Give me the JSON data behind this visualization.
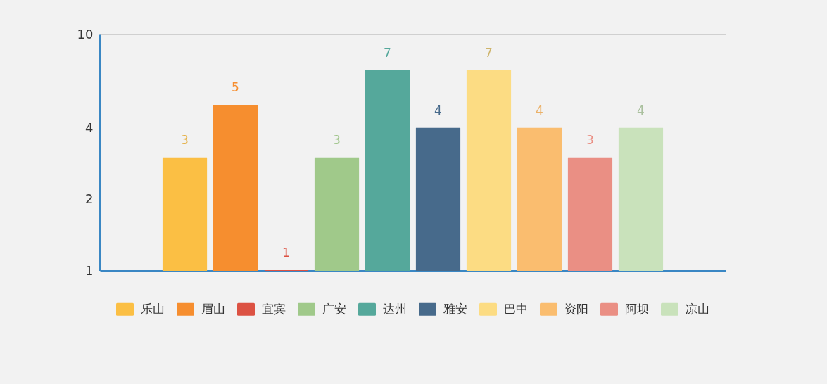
{
  "chart_data": {
    "type": "bar",
    "categories": [
      null
    ],
    "series": [
      {
        "name": "乐山",
        "color": "#fbbf44",
        "values": [
          3
        ]
      },
      {
        "name": "眉山",
        "color": "#f68e2f",
        "values": [
          5
        ]
      },
      {
        "name": "宜宾",
        "color": "#dc5243",
        "values": [
          1
        ]
      },
      {
        "name": "广安",
        "color": "#a0c98a",
        "values": [
          3
        ]
      },
      {
        "name": "达州",
        "color": "#55a89b",
        "values": [
          7
        ]
      },
      {
        "name": "雅安",
        "color": "#476a8b",
        "values": [
          4
        ]
      },
      {
        "name": "巴中",
        "color": "#fcdc83",
        "values": [
          7
        ]
      },
      {
        "name": "资阳",
        "color": "#fabd6f",
        "values": [
          4
        ]
      },
      {
        "name": "阿坝",
        "color": "#ea8f84",
        "values": [
          3
        ]
      },
      {
        "name": "凉山",
        "color": "#c9e2bb",
        "values": [
          4
        ]
      }
    ],
    "log": true,
    "ylim": [
      1,
      10
    ],
    "yticks": [
      1,
      2,
      4,
      10
    ],
    "grid": "y",
    "legend": "bottom",
    "data_labels": true,
    "tick_labels": "y"
  }
}
